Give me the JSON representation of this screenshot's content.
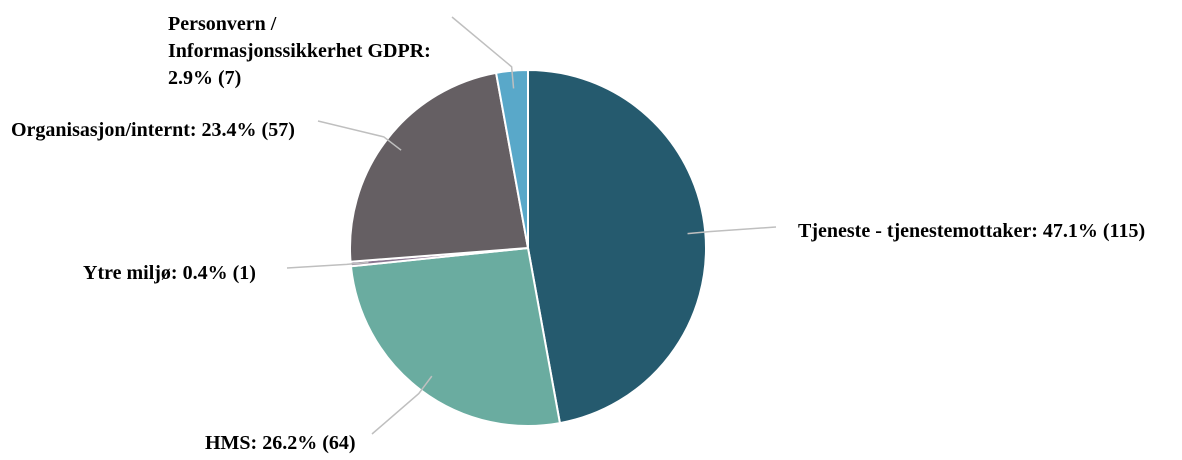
{
  "chart_data": {
    "type": "pie",
    "title": "",
    "slices": [
      {
        "label": "Tjeneste - tjenestemottaker",
        "percent_label": "47.1%",
        "count": 115,
        "color": "#255a6e",
        "label_lines": [
          "Tjeneste - tjenestemottaker: 47.1% (115)"
        ]
      },
      {
        "label": "HMS",
        "percent_label": "26.2%",
        "count": 64,
        "color": "#6aaca0",
        "label_lines": [
          "HMS: 26.2% (64)"
        ]
      },
      {
        "label": "Ytre miljø",
        "percent_label": "0.4%",
        "count": 1,
        "color": "#8a7590",
        "label_lines": [
          "Ytre miljø: 0.4% (1)"
        ]
      },
      {
        "label": "Organisasjon/internt",
        "percent_label": "23.4%",
        "count": 57,
        "color": "#655f63",
        "label_lines": [
          "Organisasjon/internt: 23.4% (57)"
        ]
      },
      {
        "label": "Personvern / Informasjonssikkerhet GDPR",
        "percent_label": "2.9%",
        "count": 7,
        "color": "#59a8c9",
        "label_lines": [
          "Personvern /",
          "Informasjonssikkerhet GDPR:",
          "2.9% (7)"
        ]
      }
    ],
    "start_angle": "12 o'clock",
    "direction": "clockwise",
    "legend": "none"
  }
}
